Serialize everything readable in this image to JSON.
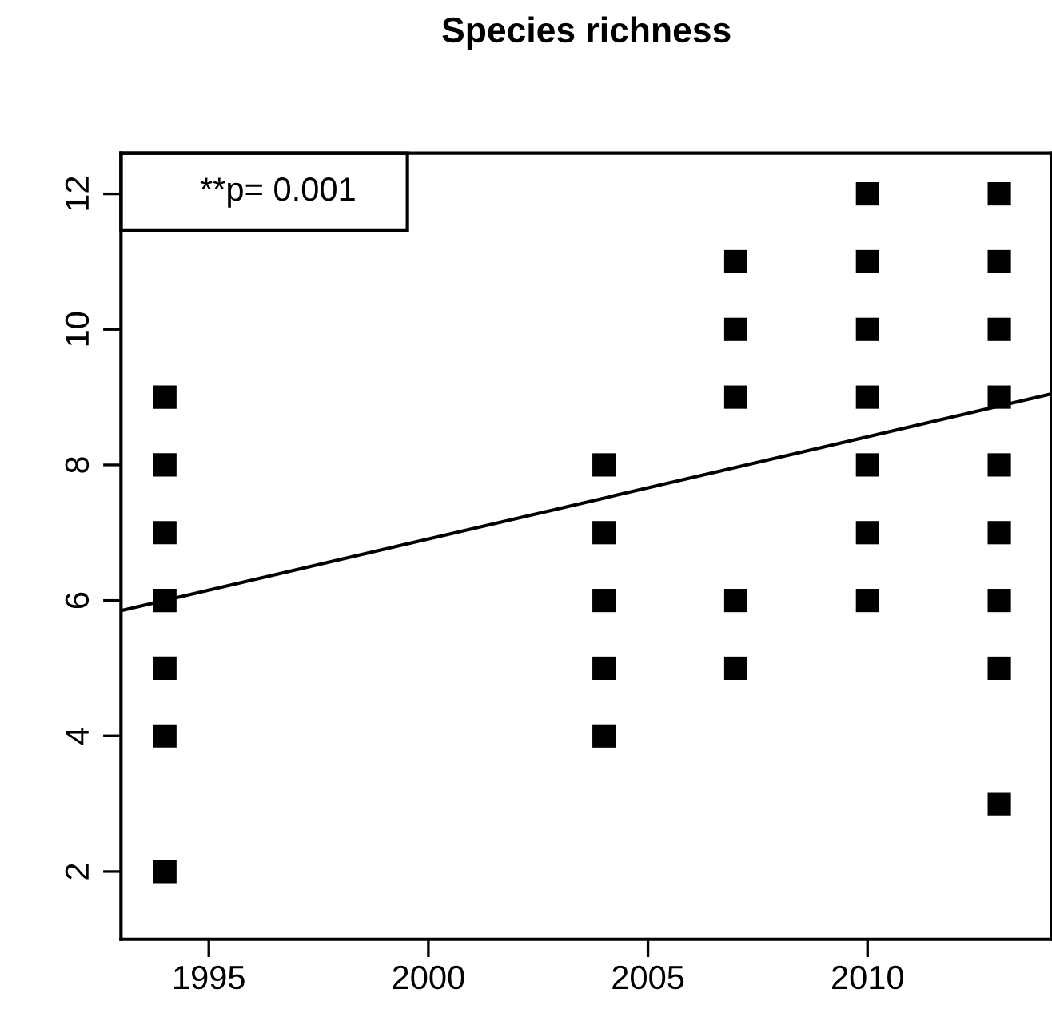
{
  "chart_data": {
    "type": "scatter",
    "title": "Species richness",
    "series": [
      {
        "color": "#000000",
        "marker": "square",
        "x": [
          1994,
          1994,
          1994,
          1994,
          1994,
          1994,
          1994,
          2004,
          2004,
          2004,
          2004,
          2004,
          2007,
          2007,
          2007,
          2007,
          2007,
          2010,
          2010,
          2010,
          2010,
          2010,
          2010,
          2010,
          2013,
          2013,
          2013,
          2013,
          2013,
          2013,
          2013,
          2013,
          2013
        ],
        "values": [
          9,
          8,
          7,
          6,
          5,
          4,
          2,
          8,
          7,
          6,
          5,
          4,
          11,
          10,
          9,
          6,
          5,
          12,
          11,
          10,
          9,
          8,
          7,
          6,
          12,
          11,
          10,
          9,
          8,
          7,
          6,
          5,
          3
        ]
      },
      {
        "type": "line",
        "color": "#000000",
        "line_style": "solid",
        "x": [
          1993,
          2014.2
        ],
        "values": [
          5.85,
          9.05
        ]
      }
    ],
    "annotations": [
      "**p= 0.001"
    ],
    "xlim": [
      1993,
      2014.2
    ],
    "ylim": [
      1.0,
      12.6
    ],
    "xticks": [
      1995,
      2000,
      2005,
      2010
    ],
    "yticks": [
      2,
      4,
      6,
      8,
      10,
      12
    ],
    "grid": false,
    "legend": false
  }
}
